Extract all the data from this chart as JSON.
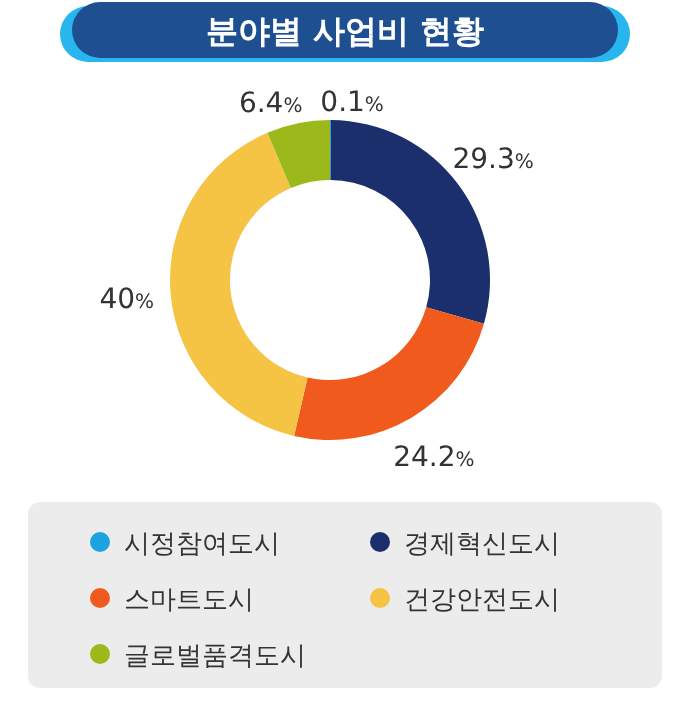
{
  "chart_data": {
    "type": "donut",
    "title": "분야별 사업비 현황",
    "categories": [
      "시정참여도시",
      "경제혁신도시",
      "스마트도시",
      "건강안전도시",
      "글로벌품격도시"
    ],
    "values": [
      0.1,
      29.3,
      24.2,
      40,
      6.4
    ],
    "colors": [
      "#1ba4e0",
      "#1c2f6d",
      "#f05a1c",
      "#f5c445",
      "#9cb91c"
    ],
    "value_labels": [
      "0.1%",
      "29.3%",
      "24.2%",
      "40%",
      "6.4%"
    ],
    "legend": "bottom"
  }
}
